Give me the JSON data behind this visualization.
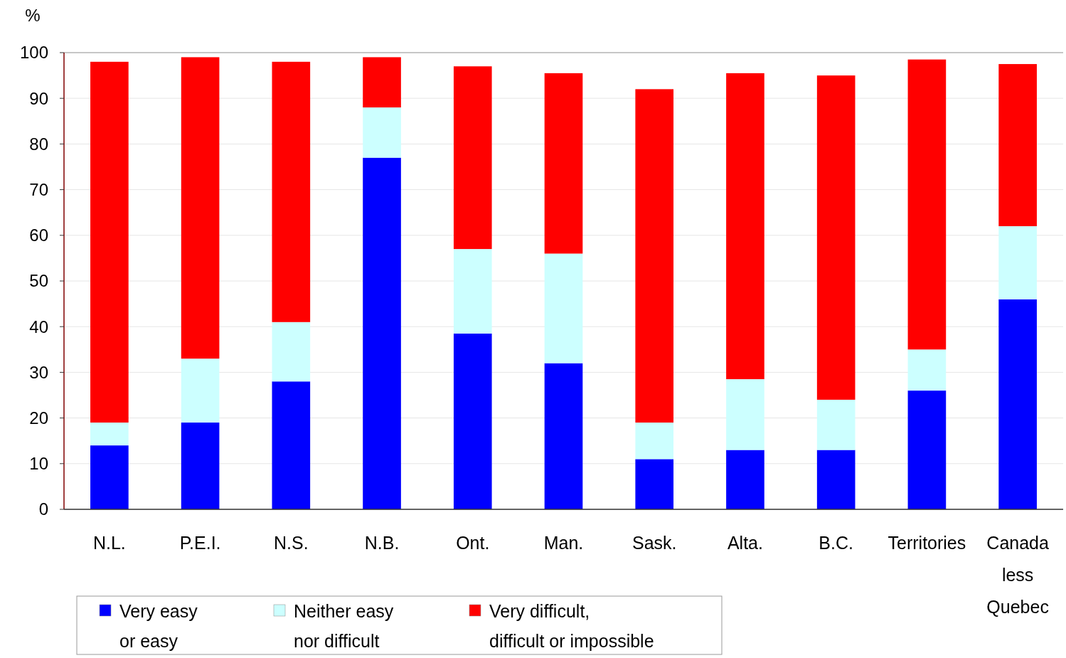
{
  "chart_data": {
    "type": "bar",
    "stacked": true,
    "ylabel": "%",
    "categories": [
      "N.L.",
      "P.E.I.",
      "N.S.",
      "N.B.",
      "Ont.",
      "Man.",
      "Sask.",
      "Alta.",
      "B.C.",
      "Territories",
      "Canada less Quebec"
    ],
    "series": [
      {
        "name": "Very easy or easy",
        "color": "#0000ff",
        "values": [
          14,
          19,
          28,
          77,
          38.5,
          32,
          11,
          13,
          13,
          26,
          46
        ]
      },
      {
        "name": "Neither easy nor difficult",
        "color": "#ccffff",
        "values": [
          5,
          14,
          13,
          11,
          18.5,
          24,
          8,
          15.5,
          11,
          9,
          16
        ]
      },
      {
        "name": "Very difficult, difficult or impossible",
        "color": "#ff0000",
        "values": [
          79,
          66,
          57,
          11,
          40,
          39.5,
          73,
          67,
          71,
          63.5,
          35.5
        ]
      }
    ],
    "ylim": [
      0,
      100
    ],
    "yticks": [
      0,
      10,
      20,
      30,
      40,
      50,
      60,
      70,
      80,
      90,
      100
    ],
    "grid": "y",
    "legend": "bottom"
  }
}
